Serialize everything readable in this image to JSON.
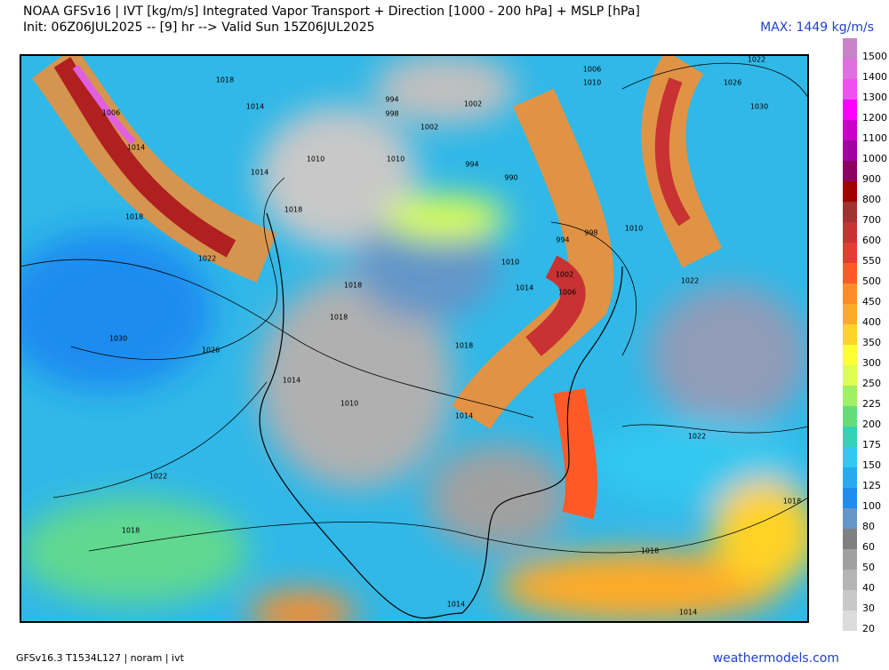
{
  "header": {
    "title": "NOAA GFSv16 | IVT [kg/m/s] Integrated Vapor Transport + Direction [1000 - 200 hPa] + MSLP [hPa]",
    "subtitle": "Init: 06Z06JUL2025 -- [9] hr --> Valid Sun 15Z06JUL2025",
    "max_label": "MAX: 1449 kg/m/s"
  },
  "isobar_labels": [
    1018,
    1014,
    1006,
    1014,
    1014,
    1010,
    1018,
    1018,
    1022,
    1018,
    1018,
    1030,
    1026,
    1014,
    1010,
    1022,
    1018,
    994,
    998,
    1002,
    1002,
    1006,
    1010,
    1022,
    1026,
    1030,
    1010,
    994,
    998,
    1010,
    1014,
    1002,
    1006,
    1022,
    1018,
    1014,
    1022,
    1018,
    1018,
    1014,
    1014,
    990,
    994,
    1010
  ],
  "colorbar": {
    "levels": [
      20,
      30,
      40,
      50,
      60,
      80,
      100,
      125,
      150,
      175,
      200,
      225,
      250,
      300,
      350,
      400,
      450,
      500,
      550,
      600,
      700,
      800,
      900,
      1000,
      1100,
      1200,
      1300,
      1400,
      1500
    ],
    "colors": [
      "#dcdcdc",
      "#c8c8c8",
      "#b4b4b4",
      "#a0a0a0",
      "#808080",
      "#6496c8",
      "#1e8cf0",
      "#28aaf0",
      "#32c8f0",
      "#32d2b4",
      "#64dc78",
      "#a0f064",
      "#dcff50",
      "#ffff32",
      "#ffd228",
      "#ffaa28",
      "#ff8c28",
      "#ff5a28",
      "#e63c32",
      "#c83232",
      "#a03232",
      "#a00000",
      "#8c0064",
      "#a000a0",
      "#c800c8",
      "#ff00ff",
      "#f050f0",
      "#e070e0",
      "#c882c8"
    ]
  },
  "footer": {
    "left": "GFSv16.3 T1534L127 | noram | ivt",
    "right": "weathermodels.com"
  }
}
